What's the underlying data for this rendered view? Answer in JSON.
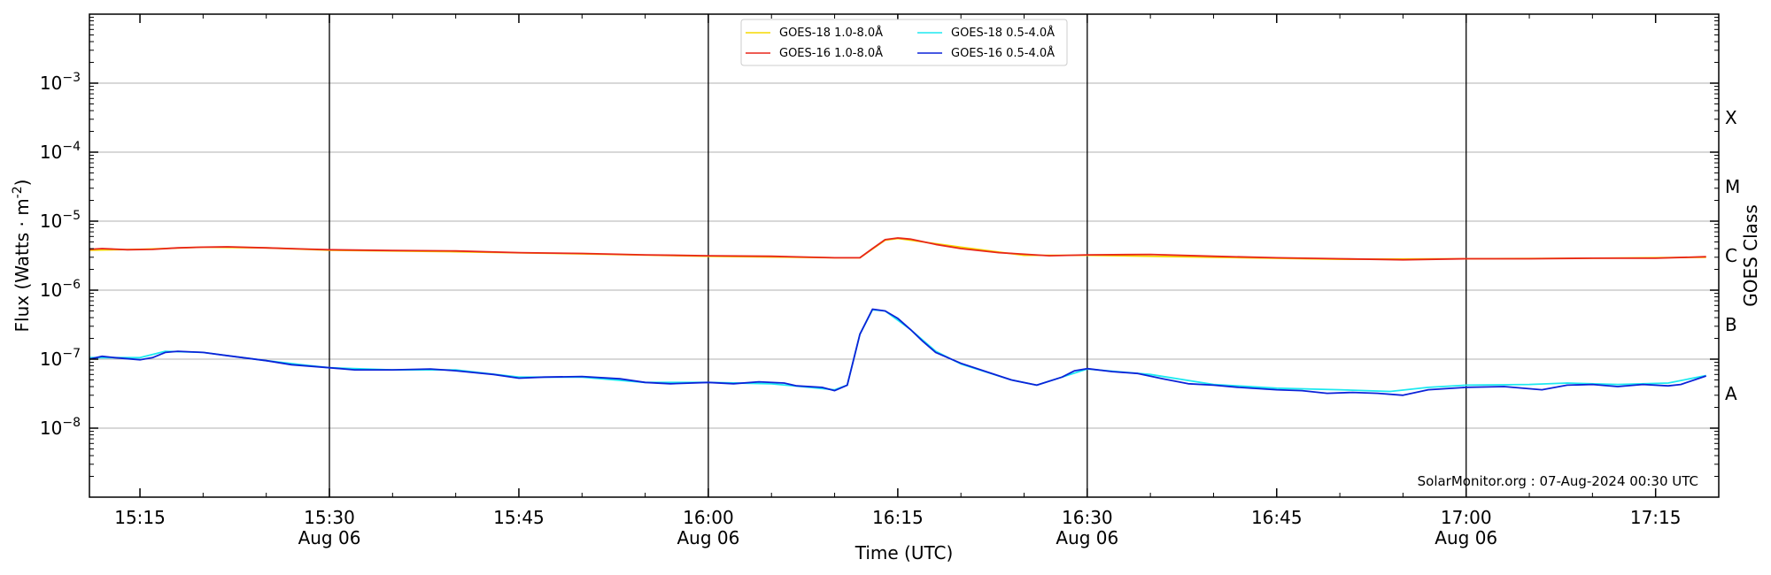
{
  "chart_data": {
    "type": "line",
    "xlabel": "Time (UTC)",
    "ylabel": "Flux (Watts · m",
    "ylabel_sup": "-2",
    "y2label": "GOES Class",
    "y_scale": "log",
    "ylim": [
      1e-09,
      0.01
    ],
    "xlim": [
      "15:11",
      "17:20"
    ],
    "grid": "horizontal at decades and vertical lines every 30 minutes",
    "legend_placement": "top-center",
    "watermark": "SolarMonitor.org : 07-Aug-2024 00:30 UTC",
    "x_ticks": [
      {
        "time": "15:15",
        "label": "15:15",
        "sub": ""
      },
      {
        "time": "15:30",
        "label": "15:30",
        "sub": "Aug 06"
      },
      {
        "time": "15:45",
        "label": "15:45",
        "sub": ""
      },
      {
        "time": "16:00",
        "label": "16:00",
        "sub": "Aug 06"
      },
      {
        "time": "16:15",
        "label": "16:15",
        "sub": ""
      },
      {
        "time": "16:30",
        "label": "16:30",
        "sub": "Aug 06"
      },
      {
        "time": "16:45",
        "label": "16:45",
        "sub": ""
      },
      {
        "time": "17:00",
        "label": "17:00",
        "sub": "Aug 06"
      },
      {
        "time": "17:15",
        "label": "17:15",
        "sub": ""
      }
    ],
    "y_ticks": [
      {
        "exp": -8,
        "value": 1e-08
      },
      {
        "exp": -7,
        "value": 1e-07
      },
      {
        "exp": -6,
        "value": 1e-06
      },
      {
        "exp": -5,
        "value": 1e-05
      },
      {
        "exp": -4,
        "value": 0.0001
      },
      {
        "exp": -3,
        "value": 0.001
      }
    ],
    "goes_classes": [
      {
        "label": "A",
        "value": 3.16e-08
      },
      {
        "label": "B",
        "value": 3.16e-07
      },
      {
        "label": "C",
        "value": 3.16e-06
      },
      {
        "label": "M",
        "value": 3.16e-05
      },
      {
        "label": "X",
        "value": 0.000316
      }
    ],
    "series": [
      {
        "name": "GOES-18 1.0-8.0Å",
        "color": "#f5d800",
        "points": [
          [
            "15:11",
            3.8e-06
          ],
          [
            "15:15",
            3.9e-06
          ],
          [
            "15:20",
            4.2e-06
          ],
          [
            "15:25",
            4.1e-06
          ],
          [
            "15:30",
            3.8e-06
          ],
          [
            "15:40",
            3.6e-06
          ],
          [
            "15:50",
            3.35e-06
          ],
          [
            "16:00",
            3.1e-06
          ],
          [
            "16:10",
            2.95e-06
          ],
          [
            "16:12",
            2.95e-06
          ],
          [
            "16:14",
            5.3e-06
          ],
          [
            "16:15",
            5.6e-06
          ],
          [
            "16:20",
            4.2e-06
          ],
          [
            "16:25",
            3.2e-06
          ],
          [
            "16:30",
            3.2e-06
          ],
          [
            "16:40",
            3e-06
          ],
          [
            "16:50",
            2.8e-06
          ],
          [
            "17:00",
            2.85e-06
          ],
          [
            "17:10",
            2.9e-06
          ],
          [
            "17:19",
            3e-06
          ]
        ]
      },
      {
        "name": "GOES-16 1.0-8.0Å",
        "color": "#e8261a",
        "points": [
          [
            "15:11",
            3.9e-06
          ],
          [
            "15:12",
            4e-06
          ],
          [
            "15:14",
            3.85e-06
          ],
          [
            "15:16",
            3.9e-06
          ],
          [
            "15:18",
            4.1e-06
          ],
          [
            "15:20",
            4.2e-06
          ],
          [
            "15:22",
            4.25e-06
          ],
          [
            "15:25",
            4.1e-06
          ],
          [
            "15:28",
            3.95e-06
          ],
          [
            "15:30",
            3.85e-06
          ],
          [
            "15:35",
            3.75e-06
          ],
          [
            "15:40",
            3.7e-06
          ],
          [
            "15:45",
            3.5e-06
          ],
          [
            "15:50",
            3.4e-06
          ],
          [
            "15:55",
            3.25e-06
          ],
          [
            "16:00",
            3.15e-06
          ],
          [
            "16:05",
            3.1e-06
          ],
          [
            "16:10",
            2.95e-06
          ],
          [
            "16:12",
            2.95e-06
          ],
          [
            "16:13",
            4e-06
          ],
          [
            "16:14",
            5.4e-06
          ],
          [
            "16:15",
            5.7e-06
          ],
          [
            "16:16",
            5.5e-06
          ],
          [
            "16:18",
            4.6e-06
          ],
          [
            "16:20",
            4e-06
          ],
          [
            "16:23",
            3.5e-06
          ],
          [
            "16:27",
            3.15e-06
          ],
          [
            "16:30",
            3.25e-06
          ],
          [
            "16:35",
            3.3e-06
          ],
          [
            "16:40",
            3.1e-06
          ],
          [
            "16:45",
            2.95e-06
          ],
          [
            "16:50",
            2.85e-06
          ],
          [
            "16:55",
            2.75e-06
          ],
          [
            "17:00",
            2.85e-06
          ],
          [
            "17:05",
            2.85e-06
          ],
          [
            "17:10",
            2.9e-06
          ],
          [
            "17:15",
            2.9e-06
          ],
          [
            "17:19",
            3.05e-06
          ]
        ]
      },
      {
        "name": "GOES-18 0.5-4.0Å",
        "color": "#1de9f0",
        "points": [
          [
            "15:11",
            1.05e-07
          ],
          [
            "15:15",
            1.05e-07
          ],
          [
            "15:17",
            1.3e-07
          ],
          [
            "15:20",
            1.25e-07
          ],
          [
            "15:25",
            9.5e-08
          ],
          [
            "15:28",
            8.2e-08
          ],
          [
            "15:30",
            7.5e-08
          ],
          [
            "15:35",
            7e-08
          ],
          [
            "15:40",
            7e-08
          ],
          [
            "15:45",
            5.5e-08
          ],
          [
            "15:50",
            5.5e-08
          ],
          [
            "15:55",
            4.6e-08
          ],
          [
            "16:00",
            4.6e-08
          ],
          [
            "16:05",
            4.4e-08
          ],
          [
            "16:08",
            3.9e-08
          ],
          [
            "16:10",
            3.6e-08
          ],
          [
            "16:11",
            4.2e-08
          ],
          [
            "16:12",
            2.3e-07
          ],
          [
            "16:13",
            5.2e-07
          ],
          [
            "16:14",
            5e-07
          ],
          [
            "16:16",
            2.7e-07
          ],
          [
            "16:18",
            1.3e-07
          ],
          [
            "16:20",
            8.5e-08
          ],
          [
            "16:24",
            5e-08
          ],
          [
            "16:26",
            4.2e-08
          ],
          [
            "16:28",
            5.5e-08
          ],
          [
            "16:30",
            7.2e-08
          ],
          [
            "16:35",
            6e-08
          ],
          [
            "16:40",
            4.3e-08
          ],
          [
            "16:45",
            3.8e-08
          ],
          [
            "16:50",
            3.6e-08
          ],
          [
            "16:54",
            3.4e-08
          ],
          [
            "16:57",
            3.9e-08
          ],
          [
            "17:00",
            4.2e-08
          ],
          [
            "17:05",
            4.3e-08
          ],
          [
            "17:08",
            4.5e-08
          ],
          [
            "17:12",
            4.3e-08
          ],
          [
            "17:16",
            4.5e-08
          ],
          [
            "17:19",
            5.8e-08
          ]
        ]
      },
      {
        "name": "GOES-16 0.5-4.0Å",
        "color": "#0b22d8",
        "points": [
          [
            "15:11",
            1e-07
          ],
          [
            "15:12",
            1.1e-07
          ],
          [
            "15:13",
            1.05e-07
          ],
          [
            "15:15",
            9.8e-08
          ],
          [
            "15:16",
            1.05e-07
          ],
          [
            "15:17",
            1.25e-07
          ],
          [
            "15:18",
            1.3e-07
          ],
          [
            "15:20",
            1.25e-07
          ],
          [
            "15:22",
            1.12e-07
          ],
          [
            "15:25",
            9.5e-08
          ],
          [
            "15:27",
            8.3e-08
          ],
          [
            "15:30",
            7.5e-08
          ],
          [
            "15:32",
            7e-08
          ],
          [
            "15:35",
            7e-08
          ],
          [
            "15:38",
            7.2e-08
          ],
          [
            "15:40",
            6.8e-08
          ],
          [
            "15:43",
            6e-08
          ],
          [
            "15:45",
            5.3e-08
          ],
          [
            "15:47",
            5.5e-08
          ],
          [
            "15:50",
            5.6e-08
          ],
          [
            "15:53",
            5.2e-08
          ],
          [
            "15:55",
            4.6e-08
          ],
          [
            "15:57",
            4.4e-08
          ],
          [
            "16:00",
            4.6e-08
          ],
          [
            "16:02",
            4.4e-08
          ],
          [
            "16:04",
            4.7e-08
          ],
          [
            "16:06",
            4.5e-08
          ],
          [
            "16:07",
            4.1e-08
          ],
          [
            "16:09",
            3.9e-08
          ],
          [
            "16:10",
            3.5e-08
          ],
          [
            "16:11",
            4.2e-08
          ],
          [
            "16:12",
            2.3e-07
          ],
          [
            "16:13",
            5.3e-07
          ],
          [
            "16:14",
            5e-07
          ],
          [
            "16:15",
            3.9e-07
          ],
          [
            "16:16",
            2.7e-07
          ],
          [
            "16:17",
            1.8e-07
          ],
          [
            "16:18",
            1.25e-07
          ],
          [
            "16:20",
            8.7e-08
          ],
          [
            "16:22",
            6.6e-08
          ],
          [
            "16:24",
            5e-08
          ],
          [
            "16:26",
            4.2e-08
          ],
          [
            "16:28",
            5.5e-08
          ],
          [
            "16:29",
            6.8e-08
          ],
          [
            "16:30",
            7.3e-08
          ],
          [
            "16:32",
            6.6e-08
          ],
          [
            "16:34",
            6.2e-08
          ],
          [
            "16:36",
            5.2e-08
          ],
          [
            "16:38",
            4.4e-08
          ],
          [
            "16:40",
            4.2e-08
          ],
          [
            "16:42",
            3.9e-08
          ],
          [
            "16:45",
            3.6e-08
          ],
          [
            "16:47",
            3.5e-08
          ],
          [
            "16:49",
            3.2e-08
          ],
          [
            "16:51",
            3.3e-08
          ],
          [
            "16:53",
            3.2e-08
          ],
          [
            "16:55",
            3e-08
          ],
          [
            "16:57",
            3.6e-08
          ],
          [
            "17:00",
            3.9e-08
          ],
          [
            "17:03",
            4e-08
          ],
          [
            "17:06",
            3.6e-08
          ],
          [
            "17:08",
            4.2e-08
          ],
          [
            "17:10",
            4.3e-08
          ],
          [
            "17:12",
            4e-08
          ],
          [
            "17:14",
            4.3e-08
          ],
          [
            "17:16",
            4.1e-08
          ],
          [
            "17:17",
            4.3e-08
          ],
          [
            "17:19",
            5.7e-08
          ]
        ]
      }
    ]
  }
}
